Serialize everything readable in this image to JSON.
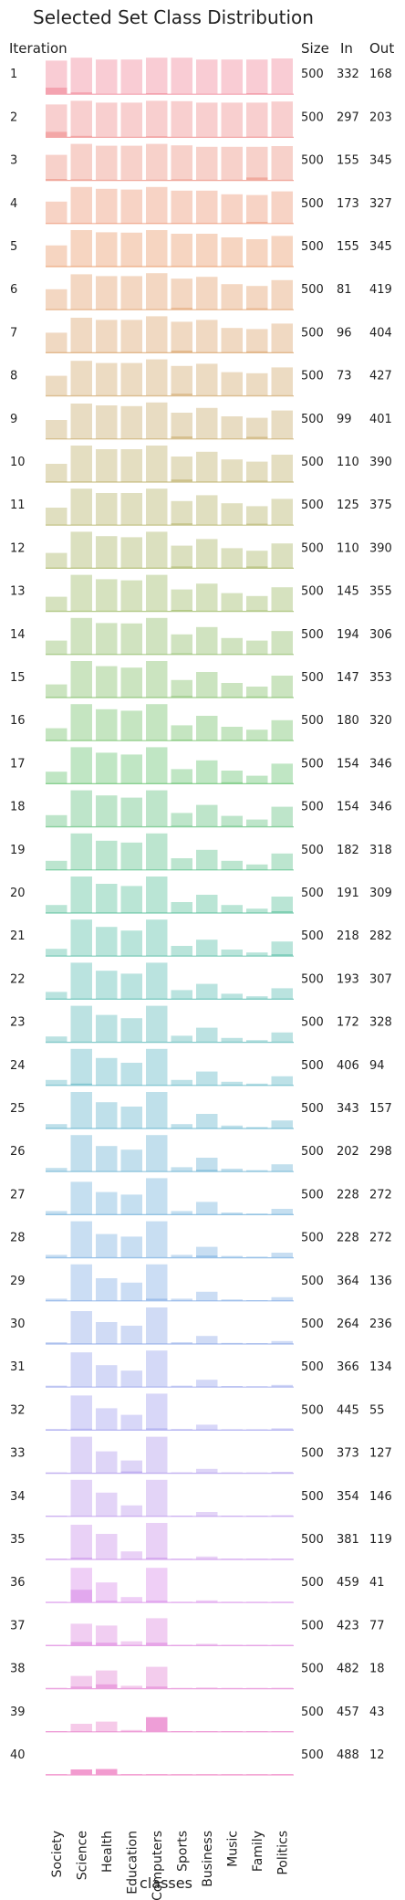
{
  "chart_data": {
    "type": "bar",
    "title": "Selected Set Class Distribution",
    "xlabel": "classes",
    "ylabel": "Iteration",
    "categories": [
      "Society",
      "Science",
      "Health",
      "Education",
      "Computers",
      "Sports",
      "Business",
      "Music",
      "Family",
      "Politics"
    ],
    "column_headers": {
      "size": "Size",
      "in": "In",
      "out": "Out"
    },
    "colors": {
      "start": "#f4a3b0",
      "ramp": [
        "#f4a3b0",
        "#efb38e",
        "#d8c090",
        "#b8c98a",
        "#8fd18f",
        "#7fcfb8",
        "#88c7d6",
        "#9cc3ea",
        "#b9b6f2",
        "#e3a8ee",
        "#f29bcf"
      ],
      "baseline_alpha": 1.0
    },
    "series": [
      {
        "iteration": "1",
        "size": 500,
        "in": 332,
        "out": 168,
        "values": [
          0.92,
          1,
          0.95,
          0.95,
          1,
          1,
          0.95,
          0.95,
          0.95,
          0.98
        ],
        "selected": [
          0.18,
          0.05,
          0,
          0,
          0.03,
          0,
          0,
          0,
          0.03,
          0
        ]
      },
      {
        "iteration": "2",
        "size": 500,
        "in": 297,
        "out": 203,
        "values": [
          0.9,
          1,
          0.95,
          0.95,
          1,
          0.99,
          0.95,
          0.95,
          0.95,
          0.98
        ],
        "selected": [
          0.15,
          0.04,
          0,
          0,
          0.03,
          0,
          0,
          0,
          0.02,
          0
        ]
      },
      {
        "iteration": "3",
        "size": 500,
        "in": 155,
        "out": 345,
        "values": [
          0.7,
          1,
          0.95,
          0.95,
          1,
          0.96,
          0.92,
          0.92,
          0.92,
          0.94
        ],
        "selected": [
          0.04,
          0.03,
          0.02,
          0,
          0.02,
          0.03,
          0.02,
          0.02,
          0.08,
          0.02
        ]
      },
      {
        "iteration": "4",
        "size": 500,
        "in": 173,
        "out": 327,
        "values": [
          0.6,
          1,
          0.95,
          0.93,
          1,
          0.9,
          0.9,
          0.8,
          0.78,
          0.88
        ],
        "selected": [
          0.02,
          0.02,
          0.02,
          0.02,
          0.02,
          0.02,
          0.02,
          0.02,
          0.04,
          0.02
        ]
      },
      {
        "iteration": "5",
        "size": 500,
        "in": 155,
        "out": 345,
        "values": [
          0.58,
          1,
          0.94,
          0.93,
          1,
          0.9,
          0.9,
          0.8,
          0.75,
          0.84
        ],
        "selected": [
          0.02,
          0.02,
          0.02,
          0.02,
          0.02,
          0.02,
          0.02,
          0.02,
          0.02,
          0.02
        ]
      },
      {
        "iteration": "6",
        "size": 500,
        "in": 81,
        "out": 419,
        "values": [
          0.56,
          0.97,
          0.92,
          0.92,
          1,
          0.85,
          0.9,
          0.7,
          0.65,
          0.81
        ],
        "selected": [
          0.02,
          0.02,
          0.02,
          0.02,
          0.02,
          0.05,
          0.02,
          0.02,
          0.04,
          0.02
        ]
      },
      {
        "iteration": "7",
        "size": 500,
        "in": 96,
        "out": 404,
        "values": [
          0.55,
          0.96,
          0.9,
          0.9,
          1,
          0.85,
          0.9,
          0.68,
          0.65,
          0.8
        ],
        "selected": [
          0.02,
          0.02,
          0.02,
          0.02,
          0.02,
          0.06,
          0.02,
          0.02,
          0.04,
          0.02
        ]
      },
      {
        "iteration": "8",
        "size": 500,
        "in": 73,
        "out": 427,
        "values": [
          0.55,
          0.96,
          0.9,
          0.9,
          1,
          0.82,
          0.88,
          0.65,
          0.62,
          0.78
        ],
        "selected": [
          0.02,
          0.02,
          0.02,
          0.02,
          0.02,
          0.06,
          0.02,
          0.02,
          0.02,
          0.02
        ]
      },
      {
        "iteration": "9",
        "size": 500,
        "in": 99,
        "out": 401,
        "values": [
          0.52,
          0.97,
          0.92,
          0.9,
          1,
          0.72,
          0.85,
          0.62,
          0.58,
          0.78
        ],
        "selected": [
          0.02,
          0.02,
          0.02,
          0.02,
          0.02,
          0.07,
          0.02,
          0.02,
          0.06,
          0.02
        ]
      },
      {
        "iteration": "10",
        "size": 500,
        "in": 110,
        "out": 390,
        "values": [
          0.5,
          1,
          0.9,
          0.9,
          1,
          0.7,
          0.83,
          0.62,
          0.56,
          0.75
        ],
        "selected": [
          0.02,
          0.02,
          0.02,
          0.02,
          0.02,
          0.07,
          0.02,
          0.02,
          0.04,
          0.02
        ]
      },
      {
        "iteration": "11",
        "size": 500,
        "in": 125,
        "out": 375,
        "values": [
          0.48,
          1,
          0.88,
          0.88,
          1,
          0.66,
          0.82,
          0.6,
          0.52,
          0.72
        ],
        "selected": [
          0.02,
          0.02,
          0.02,
          0.02,
          0.02,
          0.05,
          0.02,
          0.02,
          0.04,
          0.02
        ]
      },
      {
        "iteration": "12",
        "size": 500,
        "in": 110,
        "out": 390,
        "values": [
          0.42,
          1,
          0.88,
          0.85,
          1,
          0.62,
          0.8,
          0.55,
          0.48,
          0.68
        ],
        "selected": [
          0.02,
          0.02,
          0.02,
          0.02,
          0.02,
          0.05,
          0.02,
          0.02,
          0.05,
          0.02
        ]
      },
      {
        "iteration": "13",
        "size": 500,
        "in": 145,
        "out": 355,
        "values": [
          0.4,
          1,
          0.88,
          0.85,
          1,
          0.6,
          0.76,
          0.5,
          0.42,
          0.66
        ],
        "selected": [
          0.02,
          0.02,
          0.02,
          0.02,
          0.02,
          0.04,
          0.02,
          0.02,
          0.03,
          0.02
        ]
      },
      {
        "iteration": "14",
        "size": 500,
        "in": 194,
        "out": 306,
        "values": [
          0.38,
          1,
          0.86,
          0.85,
          1,
          0.55,
          0.75,
          0.45,
          0.38,
          0.64
        ],
        "selected": [
          0.02,
          0.02,
          0.02,
          0.02,
          0.02,
          0.03,
          0.02,
          0.02,
          0.02,
          0.02
        ]
      },
      {
        "iteration": "15",
        "size": 500,
        "in": 147,
        "out": 353,
        "values": [
          0.36,
          1,
          0.86,
          0.82,
          1,
          0.48,
          0.7,
          0.4,
          0.3,
          0.6
        ],
        "selected": [
          0.02,
          0.02,
          0.02,
          0.02,
          0.02,
          0.04,
          0.02,
          0.02,
          0.03,
          0.02
        ]
      },
      {
        "iteration": "16",
        "size": 500,
        "in": 180,
        "out": 320,
        "values": [
          0.34,
          1,
          0.86,
          0.82,
          1,
          0.42,
          0.68,
          0.38,
          0.3,
          0.56
        ],
        "selected": [
          0.02,
          0.02,
          0.02,
          0.02,
          0.02,
          0.03,
          0.02,
          0.02,
          0.02,
          0.02
        ]
      },
      {
        "iteration": "17",
        "size": 500,
        "in": 154,
        "out": 346,
        "values": [
          0.33,
          1,
          0.85,
          0.8,
          1,
          0.4,
          0.64,
          0.36,
          0.22,
          0.55
        ],
        "selected": [
          0.02,
          0.02,
          0.02,
          0.02,
          0.02,
          0.03,
          0.02,
          0.04,
          0.02,
          0.02
        ]
      },
      {
        "iteration": "18",
        "size": 500,
        "in": 154,
        "out": 346,
        "values": [
          0.32,
          1,
          0.86,
          0.8,
          1,
          0.38,
          0.6,
          0.3,
          0.2,
          0.55
        ],
        "selected": [
          0.02,
          0.02,
          0.02,
          0.02,
          0.02,
          0.03,
          0.02,
          0.03,
          0.02,
          0.02
        ]
      },
      {
        "iteration": "19",
        "size": 500,
        "in": 182,
        "out": 318,
        "values": [
          0.25,
          1,
          0.8,
          0.75,
          1,
          0.32,
          0.55,
          0.25,
          0.15,
          0.45
        ],
        "selected": [
          0.02,
          0.02,
          0.02,
          0.02,
          0.02,
          0.02,
          0.02,
          0.02,
          0.02,
          0.02
        ]
      },
      {
        "iteration": "20",
        "size": 500,
        "in": 191,
        "out": 309,
        "values": [
          0.22,
          1,
          0.8,
          0.74,
          1,
          0.3,
          0.5,
          0.22,
          0.12,
          0.45
        ],
        "selected": [
          0.02,
          0.02,
          0.02,
          0.02,
          0.02,
          0.02,
          0.02,
          0.02,
          0.02,
          0.05
        ]
      },
      {
        "iteration": "21",
        "size": 500,
        "in": 218,
        "out": 282,
        "values": [
          0.2,
          1,
          0.8,
          0.7,
          1,
          0.28,
          0.45,
          0.18,
          0.1,
          0.4
        ],
        "selected": [
          0.02,
          0.02,
          0.02,
          0.02,
          0.02,
          0.02,
          0.02,
          0.02,
          0.02,
          0.05
        ]
      },
      {
        "iteration": "22",
        "size": 500,
        "in": 193,
        "out": 307,
        "values": [
          0.2,
          1,
          0.78,
          0.7,
          1,
          0.25,
          0.42,
          0.15,
          0.08,
          0.3
        ],
        "selected": [
          0.02,
          0.02,
          0.02,
          0.02,
          0.02,
          0.02,
          0.02,
          0.02,
          0.02,
          0.02
        ]
      },
      {
        "iteration": "23",
        "size": 500,
        "in": 172,
        "out": 328,
        "values": [
          0.16,
          1,
          0.75,
          0.66,
          1,
          0.18,
          0.4,
          0.12,
          0.06,
          0.27
        ],
        "selected": [
          0.02,
          0.02,
          0.02,
          0.02,
          0.02,
          0.02,
          0.02,
          0.02,
          0.02,
          0.02
        ]
      },
      {
        "iteration": "24",
        "size": 500,
        "in": 406,
        "out": 94,
        "values": [
          0.15,
          1,
          0.75,
          0.62,
          1,
          0.15,
          0.38,
          0.1,
          0.05,
          0.25
        ],
        "selected": [
          0.02,
          0.05,
          0.02,
          0.02,
          0.02,
          0.02,
          0.02,
          0.02,
          0.02,
          0.02
        ]
      },
      {
        "iteration": "25",
        "size": 500,
        "in": 343,
        "out": 157,
        "values": [
          0.12,
          1,
          0.72,
          0.6,
          1,
          0.12,
          0.4,
          0.08,
          0.04,
          0.22
        ],
        "selected": [
          0.02,
          0.02,
          0.02,
          0.02,
          0.02,
          0.02,
          0.02,
          0.02,
          0.02,
          0.02
        ]
      },
      {
        "iteration": "26",
        "size": 500,
        "in": 202,
        "out": 298,
        "values": [
          0.1,
          1,
          0.7,
          0.6,
          1,
          0.12,
          0.38,
          0.08,
          0.04,
          0.2
        ],
        "selected": [
          0.02,
          0.02,
          0.02,
          0.02,
          0.02,
          0.02,
          0.05,
          0.02,
          0.02,
          0.02
        ]
      },
      {
        "iteration": "27",
        "size": 500,
        "in": 228,
        "out": 272,
        "values": [
          0.1,
          0.9,
          0.62,
          0.55,
          1,
          0.1,
          0.35,
          0.06,
          0.03,
          0.16
        ],
        "selected": [
          0.02,
          0.02,
          0.02,
          0.02,
          0.02,
          0.02,
          0.02,
          0.02,
          0.02,
          0.02
        ]
      },
      {
        "iteration": "28",
        "size": 500,
        "in": 228,
        "out": 272,
        "values": [
          0.08,
          1,
          0.65,
          0.58,
          1,
          0.08,
          0.3,
          0.05,
          0.03,
          0.14
        ],
        "selected": [
          0.02,
          0.02,
          0.02,
          0.02,
          0.02,
          0.02,
          0.06,
          0.02,
          0.02,
          0.02
        ]
      },
      {
        "iteration": "29",
        "size": 500,
        "in": 364,
        "out": 136,
        "values": [
          0.06,
          1,
          0.62,
          0.5,
          1,
          0.06,
          0.25,
          0.04,
          0.02,
          0.1
        ],
        "selected": [
          0.02,
          0.02,
          0.02,
          0.02,
          0.06,
          0.02,
          0.02,
          0.02,
          0.02,
          0.02
        ]
      },
      {
        "iteration": "30",
        "size": 500,
        "in": 264,
        "out": 236,
        "values": [
          0.05,
          0.9,
          0.6,
          0.5,
          1,
          0.05,
          0.22,
          0.03,
          0.02,
          0.08
        ],
        "selected": [
          0.02,
          0.02,
          0.02,
          0.02,
          0.02,
          0.02,
          0.02,
          0.02,
          0.02,
          0.02
        ]
      },
      {
        "iteration": "31",
        "size": 500,
        "in": 366,
        "out": 134,
        "values": [
          0.04,
          0.95,
          0.6,
          0.45,
          1,
          0.04,
          0.2,
          0.03,
          0.02,
          0.06
        ],
        "selected": [
          0.02,
          0.02,
          0.02,
          0.02,
          0.02,
          0.02,
          0.02,
          0.02,
          0.02,
          0.02
        ]
      },
      {
        "iteration": "32",
        "size": 500,
        "in": 445,
        "out": 55,
        "values": [
          0.03,
          0.95,
          0.6,
          0.42,
          1,
          0.03,
          0.15,
          0.02,
          0.01,
          0.05
        ],
        "selected": [
          0.02,
          0.04,
          0.02,
          0.02,
          0.05,
          0.02,
          0.02,
          0.02,
          0.02,
          0.02
        ]
      },
      {
        "iteration": "33",
        "size": 500,
        "in": 373,
        "out": 127,
        "values": [
          0.02,
          1,
          0.6,
          0.35,
          1,
          0.02,
          0.12,
          0.02,
          0.01,
          0.04
        ],
        "selected": [
          0.02,
          0.02,
          0.02,
          0.05,
          0.02,
          0.02,
          0.02,
          0.02,
          0.02,
          0.02
        ]
      },
      {
        "iteration": "34",
        "size": 500,
        "in": 354,
        "out": 146,
        "values": [
          0.02,
          1,
          0.65,
          0.3,
          1,
          0.02,
          0.12,
          0.01,
          0.01,
          0.03
        ],
        "selected": [
          0.02,
          0.02,
          0.02,
          0.02,
          0.02,
          0.02,
          0.02,
          0.02,
          0.02,
          0.02
        ]
      },
      {
        "iteration": "35",
        "size": 500,
        "in": 381,
        "out": 119,
        "values": [
          0.02,
          0.95,
          0.7,
          0.22,
          1,
          0.01,
          0.08,
          0.01,
          0.01,
          0.02
        ],
        "selected": [
          0.02,
          0.05,
          0.02,
          0.02,
          0.05,
          0.02,
          0.02,
          0.02,
          0.02,
          0.02
        ]
      },
      {
        "iteration": "36",
        "size": 500,
        "in": 459,
        "out": 41,
        "values": [
          0.02,
          0.95,
          0.55,
          0.15,
          0.95,
          0.01,
          0.06,
          0.01,
          0.01,
          0.02
        ],
        "selected": [
          0.02,
          0.35,
          0.05,
          0.02,
          0.05,
          0.02,
          0.02,
          0.02,
          0.02,
          0.02
        ]
      },
      {
        "iteration": "37",
        "size": 500,
        "in": 423,
        "out": 77,
        "values": [
          0.02,
          0.6,
          0.55,
          0.12,
          0.75,
          0.01,
          0.05,
          0.01,
          0.01,
          0.02
        ],
        "selected": [
          0.02,
          0.1,
          0.08,
          0.02,
          0.08,
          0.02,
          0.02,
          0.02,
          0.02,
          0.02
        ]
      },
      {
        "iteration": "38",
        "size": 500,
        "in": 482,
        "out": 18,
        "values": [
          0.02,
          0.35,
          0.5,
          0.08,
          0.6,
          0.01,
          0.03,
          0.01,
          0.01,
          0.02
        ],
        "selected": [
          0.02,
          0.06,
          0.12,
          0.02,
          0.06,
          0.02,
          0.02,
          0.02,
          0.02,
          0.02
        ]
      },
      {
        "iteration": "39",
        "size": 500,
        "in": 457,
        "out": 43,
        "values": [
          0.02,
          0.22,
          0.28,
          0.05,
          0.4,
          0.01,
          0.02,
          0.01,
          0.01,
          0.02
        ],
        "selected": [
          0.02,
          0.02,
          0.02,
          0.02,
          0.4,
          0.02,
          0.02,
          0.02,
          0.02,
          0.02
        ]
      },
      {
        "iteration": "40",
        "size": 500,
        "in": 488,
        "out": 12,
        "values": [
          0.02,
          0.15,
          0.16,
          0.02,
          0.02,
          0.01,
          0.01,
          0.01,
          0.01,
          0.02
        ],
        "selected": [
          0.02,
          0.15,
          0.16,
          0.02,
          0.02,
          0.02,
          0.02,
          0.02,
          0.02,
          0.02
        ]
      }
    ]
  }
}
